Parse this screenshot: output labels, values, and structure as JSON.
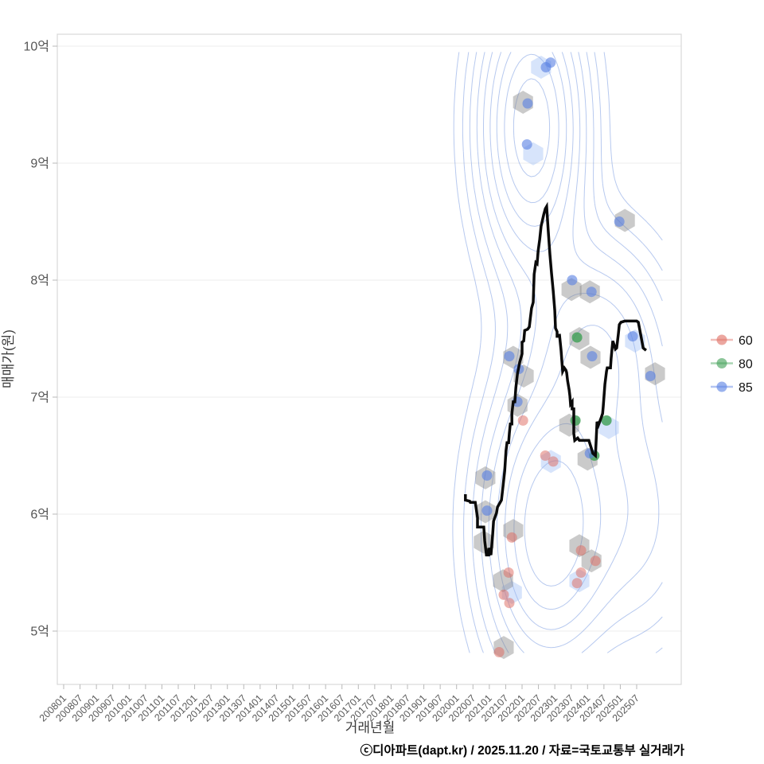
{
  "footer": {
    "attribution": "ⓒ디아파트(dapt.kr) / 2025.11.20 / 자료=국토교통부 실거래가"
  },
  "chart_data": {
    "type": "line",
    "overlays": [
      "hexbin",
      "scatter",
      "density-contour"
    ],
    "title": "",
    "xlabel": "거래년월",
    "ylabel": "매매가(원)",
    "legend_position": "right",
    "grid": "horizontal-only",
    "xlim": [
      2007.8,
      2026.86
    ],
    "ylim": [
      4.55,
      10.1
    ],
    "x_tick_start_year": 2008,
    "x_tick_step_years": 0.5,
    "x_tick_labels": [
      "200801",
      "200807",
      "200901",
      "200907",
      "201001",
      "201007",
      "201101",
      "201107",
      "201201",
      "201207",
      "201301",
      "201307",
      "201401",
      "201407",
      "201501",
      "201507",
      "201601",
      "201607",
      "201701",
      "201707",
      "201801",
      "201807",
      "201901",
      "201907",
      "202001",
      "202007",
      "202101",
      "202107",
      "202201",
      "202207",
      "202301",
      "202307",
      "202401",
      "202407",
      "202501",
      "202507"
    ],
    "y_ticks": [
      {
        "label": "5억",
        "value": 5
      },
      {
        "label": "6억",
        "value": 6
      },
      {
        "label": "7억",
        "value": 7
      },
      {
        "label": "8억",
        "value": 8
      },
      {
        "label": "9억",
        "value": 9
      },
      {
        "label": "10억",
        "value": 10
      }
    ],
    "legend": {
      "items": [
        {
          "label": "60",
          "color": "#e06c61"
        },
        {
          "label": "80",
          "color": "#3d9f54"
        },
        {
          "label": "85",
          "color": "#567fe3"
        }
      ]
    },
    "trend_line": {
      "color": "#0a0a0a",
      "width": 3.5,
      "points": [
        [
          2020.27,
          6.17
        ],
        [
          2020.27,
          6.12
        ],
        [
          2020.4,
          6.11
        ],
        [
          2020.42,
          6.1
        ],
        [
          2020.57,
          6.1
        ],
        [
          2020.64,
          5.97
        ],
        [
          2020.64,
          5.89
        ],
        [
          2020.83,
          5.89
        ],
        [
          2020.86,
          5.77
        ],
        [
          2020.91,
          5.65
        ],
        [
          2020.98,
          5.65
        ],
        [
          2020.98,
          5.71
        ],
        [
          2021.05,
          5.65
        ],
        [
          2021.1,
          5.82
        ],
        [
          2021.13,
          5.94
        ],
        [
          2021.22,
          6.01
        ],
        [
          2021.25,
          6.06
        ],
        [
          2021.37,
          6.12
        ],
        [
          2021.42,
          6.24
        ],
        [
          2021.47,
          6.37
        ],
        [
          2021.51,
          6.54
        ],
        [
          2021.54,
          6.61
        ],
        [
          2021.59,
          6.61
        ],
        [
          2021.61,
          6.69
        ],
        [
          2021.64,
          6.77
        ],
        [
          2021.69,
          6.77
        ],
        [
          2021.69,
          6.86
        ],
        [
          2021.73,
          6.96
        ],
        [
          2021.78,
          6.96
        ],
        [
          2021.81,
          7.08
        ],
        [
          2021.86,
          7.2
        ],
        [
          2021.93,
          7.3
        ],
        [
          2021.98,
          7.35
        ],
        [
          2022.0,
          7.37
        ],
        [
          2022.0,
          7.47
        ],
        [
          2022.05,
          7.48
        ],
        [
          2022.08,
          7.57
        ],
        [
          2022.17,
          7.58
        ],
        [
          2022.22,
          7.6
        ],
        [
          2022.25,
          7.67
        ],
        [
          2022.29,
          7.76
        ],
        [
          2022.34,
          7.81
        ],
        [
          2022.37,
          8.05
        ],
        [
          2022.42,
          8.15
        ],
        [
          2022.46,
          8.14
        ],
        [
          2022.49,
          8.25
        ],
        [
          2022.54,
          8.35
        ],
        [
          2022.58,
          8.46
        ],
        [
          2022.66,
          8.56
        ],
        [
          2022.71,
          8.61
        ],
        [
          2022.75,
          8.63
        ],
        [
          2022.8,
          8.42
        ],
        [
          2022.85,
          8.22
        ],
        [
          2022.9,
          8.06
        ],
        [
          2022.95,
          7.91
        ],
        [
          2023.0,
          7.74
        ],
        [
          2023.02,
          7.59
        ],
        [
          2023.07,
          7.56
        ],
        [
          2023.07,
          7.52
        ],
        [
          2023.14,
          7.52
        ],
        [
          2023.14,
          7.54
        ],
        [
          2023.19,
          7.4
        ],
        [
          2023.24,
          7.22
        ],
        [
          2023.29,
          7.25
        ],
        [
          2023.34,
          7.23
        ],
        [
          2023.36,
          7.21
        ],
        [
          2023.39,
          7.14
        ],
        [
          2023.44,
          7.06
        ],
        [
          2023.46,
          7.01
        ],
        [
          2023.48,
          6.94
        ],
        [
          2023.53,
          6.96
        ],
        [
          2023.53,
          6.9
        ],
        [
          2023.58,
          6.9
        ],
        [
          2023.58,
          6.69
        ],
        [
          2023.61,
          6.63
        ],
        [
          2023.7,
          6.65
        ],
        [
          2023.75,
          6.63
        ],
        [
          2024.04,
          6.63
        ],
        [
          2024.12,
          6.56
        ],
        [
          2024.16,
          6.52
        ],
        [
          2024.24,
          6.5
        ],
        [
          2024.29,
          6.79
        ],
        [
          2024.33,
          6.76
        ],
        [
          2024.41,
          6.82
        ],
        [
          2024.46,
          6.86
        ],
        [
          2024.48,
          6.92
        ],
        [
          2024.53,
          7.11
        ],
        [
          2024.58,
          7.22
        ],
        [
          2024.6,
          7.25
        ],
        [
          2024.7,
          7.25
        ],
        [
          2024.72,
          7.33
        ],
        [
          2024.77,
          7.48
        ],
        [
          2024.82,
          7.44
        ],
        [
          2024.85,
          7.41
        ],
        [
          2024.89,
          7.42
        ],
        [
          2024.94,
          7.54
        ],
        [
          2024.97,
          7.62
        ],
        [
          2025.02,
          7.64
        ],
        [
          2025.14,
          7.65
        ],
        [
          2025.5,
          7.65
        ],
        [
          2025.55,
          7.64
        ],
        [
          2025.62,
          7.54
        ],
        [
          2025.7,
          7.42
        ],
        [
          2025.79,
          7.4
        ]
      ]
    },
    "hexbins": {
      "radius_px": 14.5,
      "gray_color": "rgba(128,128,128,0.42)",
      "blue_color": "rgba(150,185,244,0.38)",
      "gray": [
        [
          2022.03,
          9.52
        ],
        [
          2025.14,
          8.51
        ],
        [
          2023.51,
          7.92
        ],
        [
          2024.07,
          7.9
        ],
        [
          2023.75,
          7.5
        ],
        [
          2024.09,
          7.34
        ],
        [
          2021.73,
          7.34
        ],
        [
          2022.05,
          7.18
        ],
        [
          2026.06,
          7.2
        ],
        [
          2021.86,
          6.93
        ],
        [
          2023.44,
          6.76
        ],
        [
          2024.0,
          6.47
        ],
        [
          2020.88,
          6.31
        ],
        [
          2020.88,
          6.02
        ],
        [
          2020.83,
          5.76
        ],
        [
          2021.73,
          5.86
        ],
        [
          2023.75,
          5.73
        ],
        [
          2024.12,
          5.6
        ],
        [
          2021.42,
          5.43
        ],
        [
          2021.44,
          4.86
        ]
      ],
      "blue": [
        [
          2022.58,
          9.82
        ],
        [
          2022.34,
          9.08
        ],
        [
          2025.45,
          7.48
        ],
        [
          2024.65,
          6.74
        ],
        [
          2022.88,
          6.45
        ],
        [
          2023.75,
          5.43
        ],
        [
          2021.69,
          5.33
        ]
      ]
    },
    "scatter": {
      "radius_px": 6.5,
      "groups": [
        {
          "name": "60",
          "color": "rgba(222,104,93,0.5)",
          "points": [
            [
              2022.03,
              6.8
            ],
            [
              2022.71,
              6.5
            ],
            [
              2022.95,
              6.45
            ],
            [
              2021.69,
              5.8
            ],
            [
              2023.8,
              5.69
            ],
            [
              2024.24,
              5.6
            ],
            [
              2023.8,
              5.5
            ],
            [
              2023.68,
              5.41
            ],
            [
              2021.59,
              5.5
            ],
            [
              2021.44,
              5.31
            ],
            [
              2021.61,
              5.24
            ],
            [
              2021.3,
              4.82
            ]
          ]
        },
        {
          "name": "80",
          "color": "rgba(61,159,84,0.8)",
          "points": [
            [
              2023.68,
              7.51
            ],
            [
              2023.63,
              6.8
            ],
            [
              2024.58,
              6.8
            ],
            [
              2024.21,
              6.5
            ]
          ]
        },
        {
          "name": "85",
          "color": "rgba(86,127,227,0.6)",
          "points": [
            [
              2022.87,
              9.86
            ],
            [
              2022.73,
              9.82
            ],
            [
              2022.17,
              9.51
            ],
            [
              2022.15,
              9.16
            ],
            [
              2024.97,
              8.5
            ],
            [
              2023.53,
              8.0
            ],
            [
              2024.12,
              7.9
            ],
            [
              2021.61,
              7.35
            ],
            [
              2021.9,
              7.24
            ],
            [
              2024.14,
              7.35
            ],
            [
              2025.38,
              7.52
            ],
            [
              2025.92,
              7.18
            ],
            [
              2021.86,
              6.96
            ],
            [
              2020.93,
              6.33
            ],
            [
              2020.93,
              6.03
            ],
            [
              2024.07,
              6.52
            ]
          ]
        }
      ]
    },
    "contours": {
      "color": "#7c9ce2",
      "opacity": 0.55,
      "levels": [
        0.06,
        0.11,
        0.17,
        0.25,
        0.34,
        0.45,
        0.57,
        0.71,
        0.86
      ],
      "kernels": [
        {
          "cx": 2022.29,
          "cy": 9.31,
          "sx": 1.0,
          "sy": 0.75,
          "amp": 1.0
        },
        {
          "cx": 2022.78,
          "cy": 5.87,
          "sx": 1.22,
          "sy": 0.78,
          "amp": 1.0
        },
        {
          "cx": 2024.29,
          "cy": 7.47,
          "sx": 1.34,
          "sy": 0.58,
          "amp": 0.5
        },
        {
          "cx": 2025.7,
          "cy": 5.97,
          "sx": 1.34,
          "sy": 0.82,
          "amp": 0.45
        }
      ],
      "window": {
        "x0": 2019.6,
        "x1": 2026.4,
        "y0": 4.78,
        "y1": 9.95
      }
    }
  }
}
